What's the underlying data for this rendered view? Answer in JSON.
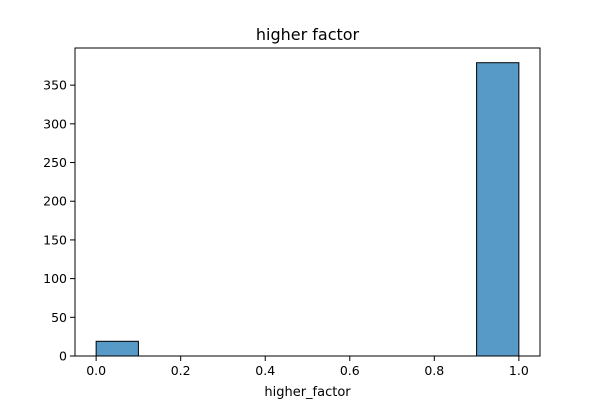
{
  "chart_data": {
    "type": "bar",
    "title": "higher factor",
    "xlabel": "higher_factor",
    "ylabel": "",
    "bins": [
      {
        "x0": 0.0,
        "x1": 0.1,
        "count": 19
      },
      {
        "x0": 0.1,
        "x1": 0.2,
        "count": 0
      },
      {
        "x0": 0.2,
        "x1": 0.3,
        "count": 0
      },
      {
        "x0": 0.3,
        "x1": 0.4,
        "count": 0
      },
      {
        "x0": 0.4,
        "x1": 0.5,
        "count": 0
      },
      {
        "x0": 0.5,
        "x1": 0.6,
        "count": 0
      },
      {
        "x0": 0.6,
        "x1": 0.7,
        "count": 0
      },
      {
        "x0": 0.7,
        "x1": 0.8,
        "count": 0
      },
      {
        "x0": 0.8,
        "x1": 0.9,
        "count": 0
      },
      {
        "x0": 0.9,
        "x1": 1.0,
        "count": 379
      }
    ],
    "xlim": [
      -0.05,
      1.05
    ],
    "ylim": [
      0,
      398
    ],
    "xticks": [
      0.0,
      0.2,
      0.4,
      0.6,
      0.8,
      1.0
    ],
    "xtick_labels": [
      "0.0",
      "0.2",
      "0.4",
      "0.6",
      "0.8",
      "1.0"
    ],
    "yticks": [
      0,
      50,
      100,
      150,
      200,
      250,
      300,
      350
    ],
    "ytick_labels": [
      "0",
      "50",
      "100",
      "150",
      "200",
      "250",
      "300",
      "350"
    ],
    "grid": false,
    "colors": {
      "bar_fill": "#5799c7",
      "bar_edge": "#000000",
      "axis": "#000000"
    }
  }
}
